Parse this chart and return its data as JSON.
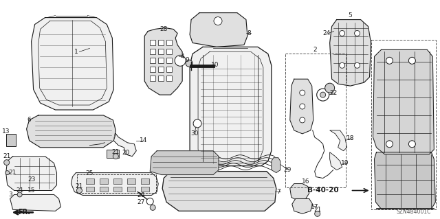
{
  "bg_color": "#ffffff",
  "line_color": "#1a1a1a",
  "diagram_code": "SZN4B4001C",
  "figsize": [
    6.4,
    3.19
  ],
  "dpi": 100
}
